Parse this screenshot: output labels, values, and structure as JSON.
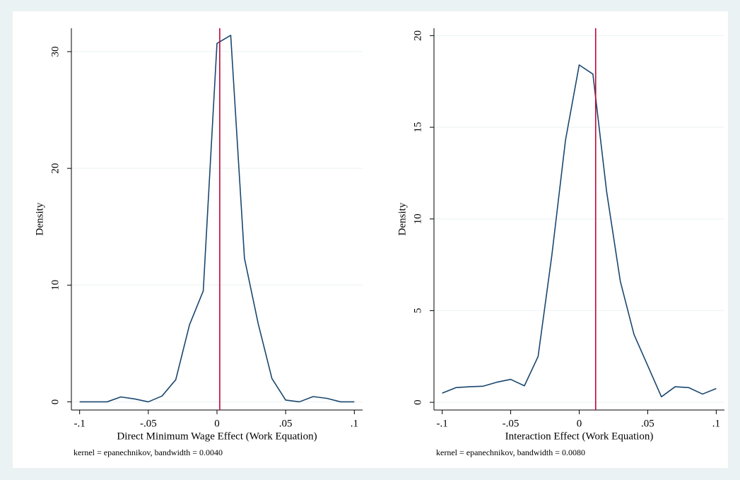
{
  "chart_data": [
    {
      "type": "line",
      "xlabel": "Direct Minimum Wage Effect (Work Equation)",
      "ylabel": "Density",
      "note": "kernel = epanechnikov, bandwidth = 0.0040",
      "x": [
        -0.1,
        -0.09,
        -0.08,
        -0.07,
        -0.06,
        -0.05,
        -0.04,
        -0.03,
        -0.02,
        -0.01,
        0,
        0.01,
        0.02,
        0.03,
        0.04,
        0.05,
        0.06,
        0.07,
        0.08,
        0.09,
        0.1
      ],
      "values": [
        0,
        0,
        0,
        0.42,
        0.25,
        0,
        0.5,
        1.9,
        6.6,
        9.5,
        30.7,
        31.4,
        12.3,
        6.7,
        2.0,
        0.15,
        0,
        0.45,
        0.3,
        0,
        0
      ],
      "color": "#1a476f",
      "reference_line": {
        "x": 0.002,
        "color": "#c10534"
      },
      "xlim": [
        -0.106,
        0.106
      ],
      "ylim": [
        -0.7,
        32
      ],
      "xticks": [
        {
          "value": -0.1,
          "label": "-.1"
        },
        {
          "value": -0.05,
          "label": "-.05"
        },
        0,
        {
          "value": 0.05,
          "label": ".05"
        },
        {
          "value": 0.1,
          "label": ".1"
        }
      ],
      "yticks": [
        0,
        10,
        20,
        30
      ],
      "grid": true
    },
    {
      "type": "line",
      "xlabel": "Interaction Effect (Work Equation)",
      "ylabel": "Density",
      "note": "kernel = epanechnikov, bandwidth = 0.0080",
      "x": [
        -0.1,
        -0.09,
        -0.08,
        -0.07,
        -0.06,
        -0.05,
        -0.04,
        -0.03,
        -0.02,
        -0.01,
        0,
        0.01,
        0.02,
        0.03,
        0.04,
        0.05,
        0.06,
        0.07,
        0.08,
        0.09,
        0.1
      ],
      "values": [
        0.5,
        0.8,
        0.85,
        0.88,
        1.1,
        1.25,
        0.9,
        2.5,
        8.0,
        14.3,
        18.4,
        17.9,
        11.5,
        6.6,
        3.7,
        2.0,
        0.3,
        0.85,
        0.8,
        0.45,
        0.75
      ],
      "color": "#1a476f",
      "reference_line": {
        "x": 0.012,
        "color": "#c10534"
      },
      "xlim": [
        -0.106,
        0.106
      ],
      "ylim": [
        -0.42,
        20.4
      ],
      "xticks": [
        {
          "value": -0.1,
          "label": "-.1"
        },
        {
          "value": -0.05,
          "label": "-.05"
        },
        0,
        {
          "value": 0.05,
          "label": ".05"
        },
        {
          "value": 0.1,
          "label": ".1"
        }
      ],
      "yticks": [
        0,
        5,
        10,
        15,
        20
      ],
      "grid": true
    }
  ]
}
